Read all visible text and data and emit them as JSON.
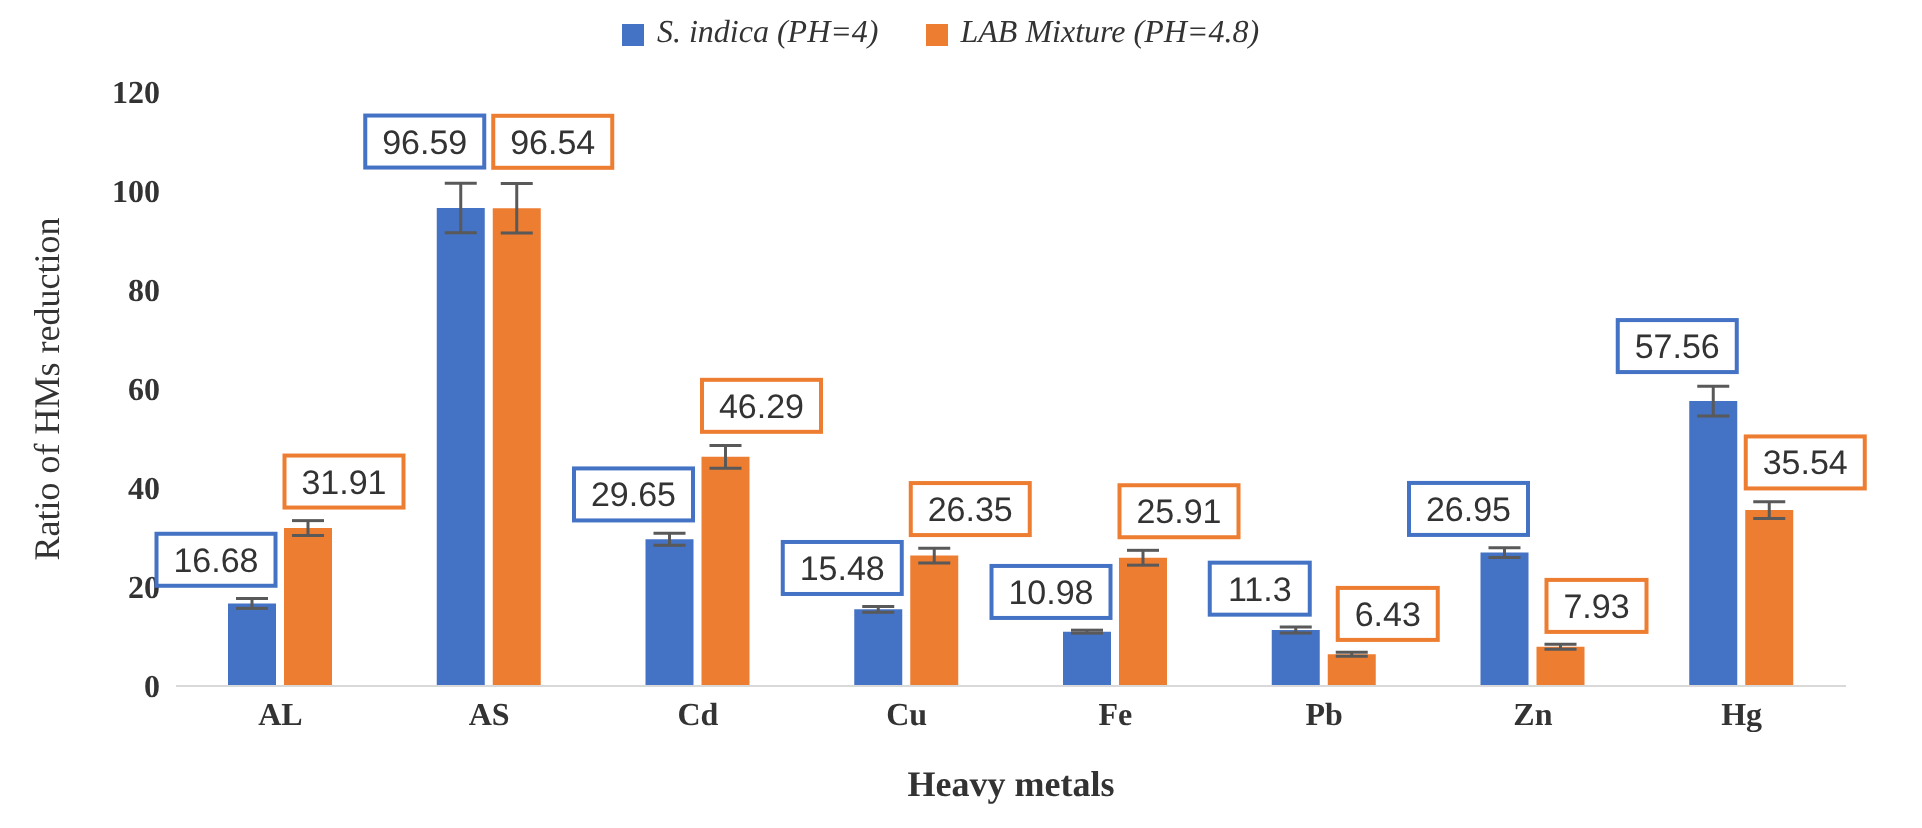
{
  "chart_data": {
    "type": "bar",
    "xlabel": "Heavy metals",
    "ylabel": "Ratio of HMs reduction",
    "categories": [
      "AL",
      "AS",
      "Cd",
      "Cu",
      "Fe",
      "Pb",
      "Zn",
      "Hg"
    ],
    "series": [
      {
        "name": "S. indica (PH=4)",
        "color": "#4472c4",
        "values": [
          16.68,
          96.59,
          29.65,
          15.48,
          10.98,
          11.3,
          26.95,
          57.56
        ],
        "errors": [
          1,
          5,
          1.2,
          0.6,
          0.3,
          0.6,
          1,
          3
        ]
      },
      {
        "name": "LAB Mixture (PH=4.8)",
        "color": "#ed7d31",
        "values": [
          31.91,
          96.54,
          46.29,
          26.35,
          25.91,
          6.43,
          7.93,
          35.54
        ],
        "errors": [
          1.5,
          5,
          2.3,
          1.5,
          1.5,
          0.4,
          0.5,
          1.7
        ]
      }
    ],
    "ylim": [
      0,
      120
    ],
    "yticks": [
      0,
      20,
      40,
      60,
      80,
      100,
      120
    ],
    "grid": false,
    "legend": "top",
    "data_labels": true
  }
}
